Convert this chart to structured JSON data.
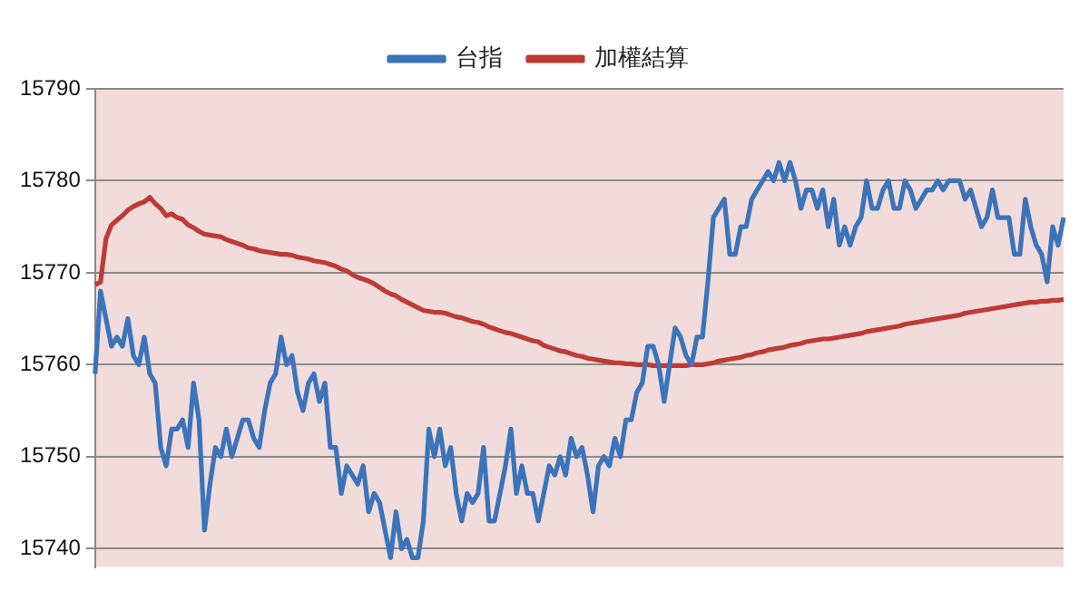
{
  "chart_data": {
    "type": "line",
    "categories": [
      null,
      null,
      null,
      null,
      null,
      null,
      null,
      null,
      null,
      null,
      null,
      null,
      null,
      null,
      null,
      null,
      null,
      null,
      null,
      null,
      null,
      null,
      null,
      null,
      null,
      null,
      null,
      null,
      null,
      null,
      null,
      null,
      null,
      null,
      null,
      null,
      null,
      null,
      null,
      null,
      null,
      null,
      null,
      null,
      null,
      null,
      null,
      null,
      null,
      null,
      null,
      null,
      null,
      null,
      null,
      null,
      null,
      null,
      null,
      null,
      null,
      null,
      null,
      null,
      null,
      null,
      null,
      null,
      null,
      null,
      null,
      null,
      null,
      null,
      null,
      null,
      null,
      null,
      null,
      null,
      null,
      null,
      null,
      null,
      null,
      null,
      null,
      null,
      null,
      null,
      null,
      null,
      null,
      null,
      null,
      null,
      null,
      null,
      null,
      null,
      null,
      null,
      null,
      null,
      null,
      null,
      null,
      null,
      null,
      null,
      null,
      null,
      null,
      null,
      null,
      null,
      null,
      null,
      null,
      null,
      null,
      null,
      null,
      null,
      null,
      null,
      null,
      null,
      null,
      null,
      null,
      null,
      null,
      null,
      null,
      null,
      null,
      null,
      null,
      null,
      null,
      null,
      null,
      null,
      null,
      null,
      null,
      null,
      null,
      null,
      null,
      null,
      null,
      null,
      null,
      null,
      null,
      null,
      null,
      null,
      null,
      null,
      null,
      null,
      null,
      null,
      null,
      null,
      null,
      null,
      null,
      null,
      null,
      null,
      null,
      null,
      null,
      null
    ],
    "series": [
      {
        "name": "台指",
        "color": "#3b74ba",
        "values": [
          15759,
          15768,
          15765,
          15762,
          15763,
          15762,
          15765,
          15761,
          15760,
          15763,
          15759,
          15758,
          15751,
          15749,
          15753,
          15753,
          15754,
          15751,
          15758,
          15754,
          15742,
          15747,
          15751,
          15750,
          15753,
          15750,
          15752,
          15754,
          15754,
          15752,
          15751,
          15755,
          15758,
          15759,
          15763,
          15760,
          15761,
          15757,
          15755,
          15758,
          15759,
          15756,
          15758,
          15751,
          15751,
          15746,
          15749,
          15748,
          15747,
          15749,
          15744,
          15746,
          15745,
          15742,
          15739,
          15744,
          15740,
          15741,
          15739,
          15739,
          15743,
          15753,
          15750,
          15753,
          15749,
          15751,
          15746,
          15743,
          15746,
          15745,
          15746,
          15751,
          15743,
          15743,
          15746,
          15749,
          15753,
          15746,
          15749,
          15746,
          15746,
          15743,
          15746,
          15749,
          15748,
          15750,
          15748,
          15752,
          15750,
          15751,
          15748,
          15744,
          15749,
          15750,
          15749,
          15752,
          15750,
          15754,
          15754,
          15757,
          15758,
          15762,
          15762,
          15760,
          15756,
          15760,
          15764,
          15763,
          15761,
          15760,
          15763,
          15763,
          15769,
          15776,
          15777,
          15778,
          15772,
          15772,
          15775,
          15775,
          15778,
          15779,
          15780,
          15781,
          15780,
          15782,
          15780,
          15782,
          15780,
          15777,
          15779,
          15779,
          15777,
          15779,
          15775,
          15778,
          15773,
          15775,
          15773,
          15775,
          15776,
          15780,
          15777,
          15777,
          15779,
          15780,
          15777,
          15777,
          15780,
          15779,
          15777,
          15778,
          15779,
          15779,
          15780,
          15779,
          15780,
          15780,
          15780,
          15778,
          15779,
          15777,
          15775,
          15776,
          15779,
          15776,
          15776,
          15776,
          15772,
          15772,
          15778,
          15775,
          15773,
          15772,
          15769,
          15775,
          15773,
          15776
        ]
      },
      {
        "name": "加權結算",
        "color": "#be3b35",
        "values": [
          15768.7,
          15769,
          15773.7,
          15775.2,
          15775.7,
          15776.2,
          15776.8,
          15777.2,
          15777.5,
          15777.7,
          15778.2,
          15777.5,
          15777,
          15776.2,
          15776.4,
          15776,
          15775.8,
          15775.2,
          15774.9,
          15774.5,
          15774.2,
          15774.1,
          15774,
          15773.9,
          15773.6,
          15773.4,
          15773.2,
          15773,
          15772.7,
          15772.6,
          15772.4,
          15772.3,
          15772.2,
          15772.1,
          15772,
          15772,
          15771.9,
          15771.7,
          15771.6,
          15771.5,
          15771.3,
          15771.2,
          15771.1,
          15770.9,
          15770.7,
          15770.4,
          15770.2,
          15769.8,
          15769.5,
          15769.3,
          15769.1,
          15768.8,
          15768.4,
          15768,
          15767.7,
          15767.5,
          15767.1,
          15766.8,
          15766.5,
          15766.2,
          15765.9,
          15765.8,
          15765.7,
          15765.7,
          15765.6,
          15765.4,
          15765.2,
          15765.1,
          15764.9,
          15764.7,
          15764.6,
          15764.4,
          15764.1,
          15763.9,
          15763.7,
          15763.5,
          15763.4,
          15763.2,
          15763,
          15762.8,
          15762.6,
          15762.5,
          15762.1,
          15761.9,
          15761.7,
          15761.5,
          15761.4,
          15761.2,
          15761,
          15760.9,
          15760.7,
          15760.6,
          15760.5,
          15760.4,
          15760.3,
          15760.2,
          15760.2,
          15760.1,
          15760.1,
          15760,
          15760,
          15760,
          15759.9,
          15759.9,
          15759.9,
          15759.9,
          15759.9,
          15759.9,
          15759.9,
          15760,
          15760,
          15760,
          15760.1,
          15760.2,
          15760.4,
          15760.5,
          15760.6,
          15760.7,
          15760.8,
          15761,
          15761.1,
          15761.3,
          15761.4,
          15761.6,
          15761.7,
          15761.8,
          15761.9,
          15762.1,
          15762.2,
          15762.3,
          15762.5,
          15762.6,
          15762.7,
          15762.8,
          15762.8,
          15762.9,
          15763,
          15763.1,
          15763.2,
          15763.3,
          15763.4,
          15763.6,
          15763.7,
          15763.8,
          15763.9,
          15764,
          15764.1,
          15764.2,
          15764.4,
          15764.5,
          15764.6,
          15764.7,
          15764.8,
          15764.9,
          15765,
          15765.1,
          15765.2,
          15765.3,
          15765.4,
          15765.6,
          15765.7,
          15765.8,
          15765.9,
          15766,
          15766.1,
          15766.2,
          15766.3,
          15766.4,
          15766.5,
          15766.6,
          15766.7,
          15766.8,
          15766.8,
          15766.9,
          15766.9,
          15767,
          15767,
          15767.1
        ]
      }
    ],
    "ylim": [
      15738,
      15790
    ],
    "yticks": [
      15740,
      15750,
      15760,
      15770,
      15780,
      15790
    ],
    "grid": "y",
    "legend": "top",
    "marker": "none",
    "line_style": "solid",
    "tick_labels": "y"
  }
}
